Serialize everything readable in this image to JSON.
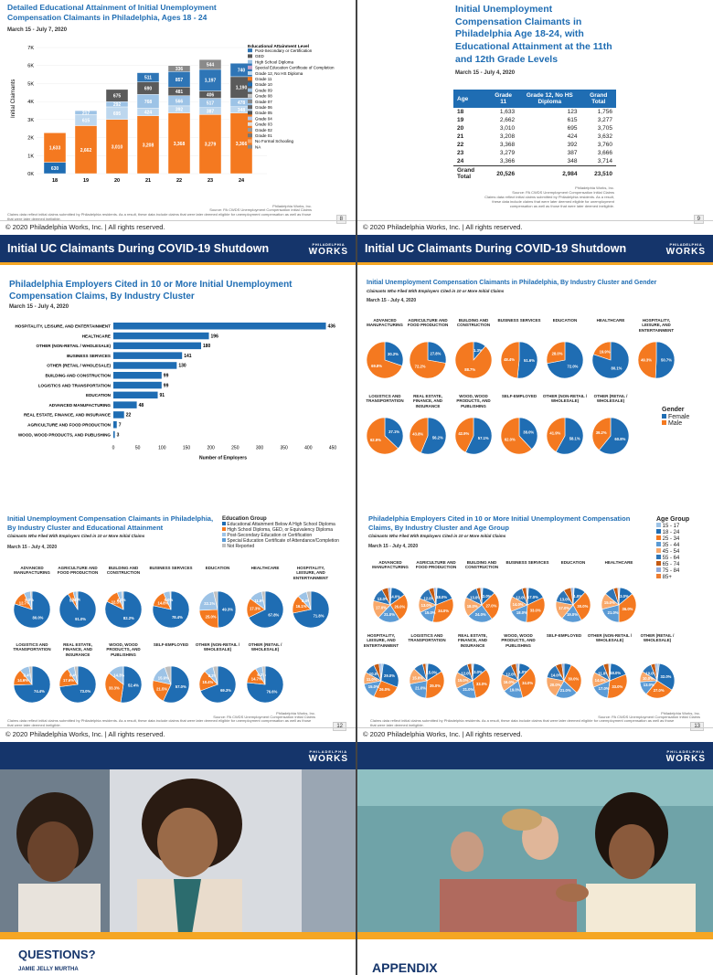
{
  "colors": {
    "blue": "#1f6db3",
    "orange": "#f47920",
    "navy": "#15356b",
    "gold": "#f5a623",
    "light_blue": "#9dc3e6"
  },
  "footer": {
    "copyright": "© 2020 Philadelphia Works, Inc. | All rights reserved."
  },
  "logo": {
    "small": "PHILADELPHIA",
    "big": "WORKS"
  },
  "p8": {
    "title": "Detailed Educational Attainment of Initial Unemployment Compensation Claimants in Philadelphia, Ages 18 - 24",
    "date": "March 15 - July 7, 2020",
    "page": "8",
    "source": "Source: PA CWDS Unemployment Compensation Initial Claims",
    "notes": "Claims data reflect initial claims submitted by Philadelphia residents. As a result, these data include claims that were later deemed eligible for unemployment compensation as well as those that were later deemed ineligible.",
    "credit": "Philadelphia Works, Inc."
  },
  "p9": {
    "title": "Initial Unemployment Compensation Claimants in Philadelphia Age 18-24, with Educational Attainment at the 11th and 12th Grade Levels",
    "date": "March 15 - July 4, 2020",
    "page": "9",
    "headers": [
      "Age",
      "Grade 11",
      "Grade 12, No HS Diploma",
      "Grand Total"
    ],
    "rows": [
      [
        "18",
        "1,633",
        "123",
        "1,756"
      ],
      [
        "19",
        "2,662",
        "615",
        "3,277"
      ],
      [
        "20",
        "3,010",
        "695",
        "3,705"
      ],
      [
        "21",
        "3,208",
        "424",
        "3,632"
      ],
      [
        "22",
        "3,368",
        "392",
        "3,760"
      ],
      [
        "23",
        "3,279",
        "387",
        "3,666"
      ],
      [
        "24",
        "3,366",
        "348",
        "3,714"
      ]
    ],
    "total": [
      "Grand Total",
      "20,526",
      "2,984",
      "23,510"
    ],
    "credit": "Philadelphia Works, Inc.",
    "source": "Source: PA CWDS Unemployment Compensation Initial Claims",
    "notes": "Claims data reflect initial claims submitted by Philadelphia residents. As a result, these data include claims that were later deemed eligible for unemployment compensation as well as those that were later deemed ineligible."
  },
  "p10": {
    "banner": "Initial UC Claimants During COVID-19 Shutdown",
    "title": "Philadelphia Employers Cited in 10 or More Initial Unemployment Compensation Claims, By Industry Cluster",
    "date": "March 15 - July 4, 2020"
  },
  "p11": {
    "banner": "Initial UC Claimants During COVID-19 Shutdown",
    "title": "Initial Unemployment Compensation Claimants in Philadelphia, By Industry Cluster and Gender",
    "subtitle": "Claimants Who Filed With Employers Cited in 10 or More Initial Claims",
    "date": "March 15 - July 4, 2020",
    "legend_title": "Gender",
    "legend": [
      "Female",
      "Male"
    ],
    "pies": [
      {
        "label": "ADVANCED MANUFACTURING",
        "female": 30.2,
        "male": 69.8
      },
      {
        "label": "AGRICULTURE AND FOOD PRODUCTION",
        "female": 27.8,
        "male": 72.2
      },
      {
        "label": "BUILDING AND CONSTRUCTION",
        "female": 11.3,
        "male": 88.7
      },
      {
        "label": "BUSINESS SERVICES",
        "female": 51.6,
        "male": 48.4
      },
      {
        "label": "EDUCATION",
        "female": 72.0,
        "male": 28.0
      },
      {
        "label": "HEALTHCARE",
        "female": 80.1,
        "male": 19.9
      },
      {
        "label": "HOSPITALITY, LEISURE, AND ENTERTAINMENT",
        "female": 50.7,
        "male": 49.3
      },
      {
        "label": "LOGISTICS AND TRANSPORTATION",
        "female": 37.1,
        "male": 62.9
      },
      {
        "label": "REAL ESTATE, FINANCE, AND INSURANCE",
        "female": 56.2,
        "male": 43.8
      },
      {
        "label": "WOOD, WOOD PRODUCTS, AND PUBLISHING",
        "female": 57.1,
        "male": 42.9
      },
      {
        "label": "SELF-EMPLOYED",
        "female": 38.0,
        "male": 62.0
      },
      {
        "label": "OTHER (NON-RETAIL / WHOLESALE)",
        "female": 58.1,
        "male": 41.9
      },
      {
        "label": "OTHER (RETAIL / WHOLESALE)",
        "female": 60.8,
        "male": 39.2
      }
    ]
  },
  "p12": {
    "title": "Initial Unemployment Compensation Claimants in Philadelphia, By Industry Cluster and Educational Attainment",
    "subtitle": "Claimants Who Filed With Employers Cited in 10 or More Initial Claims",
    "date": "March 15 - July 4, 2020",
    "page": "12",
    "legend_title": "Education Group",
    "legend": [
      "Educational Attainment Below A High School Diploma",
      "High School Diploma, GED, or Equivalency Diploma",
      "Post-Secondary Education or Certification",
      "Special Education Certificate of Attendance/Completion",
      "Not Reported"
    ],
    "pies": [
      {
        "label": "ADVANCED MANUFACTURING",
        "main": 80.0,
        "second": 12.7,
        "third": 6.0
      },
      {
        "label": "AGRICULTURE AND FOOD PRODUCTION",
        "main": 91.0,
        "second": 5.0,
        "third": 3.0
      },
      {
        "label": "BUILDING AND CONSTRUCTION",
        "main": 82.2,
        "second": 12.3,
        "third": 4.2
      },
      {
        "label": "BUSINESS SERVICES",
        "main": 78.4,
        "second": 14.8,
        "third": 6.0
      },
      {
        "label": "EDUCATION",
        "main": 49.3,
        "second": 25.0,
        "third": 22.1
      },
      {
        "label": "HEALTHCARE",
        "main": 67.8,
        "second": 17.3,
        "third": 11.9
      },
      {
        "label": "HOSPITALITY, LEISURE, AND ENTERTAINMENT",
        "main": 71.8,
        "second": 16.1,
        "third": 8.4
      },
      {
        "label": "LOGISTICS AND TRANSPORTATION",
        "main": 74.4,
        "second": 14.6,
        "third": 8.4
      },
      {
        "label": "REAL ESTATE, FINANCE, AND INSURANCE",
        "main": 73.0,
        "second": 17.6,
        "third": 6.4
      },
      {
        "label": "WOOD, WOOD PRODUCTS, AND PUBLISHING",
        "main": 52.4,
        "second": 33.3,
        "third": 14.3
      },
      {
        "label": "SELF-EMPLOYED",
        "main": 57.0,
        "second": 21.5,
        "third": 15.9
      },
      {
        "label": "OTHER (NON-RETAIL / WHOLESALE)",
        "main": 69.3,
        "second": 18.4,
        "third": 8.2
      },
      {
        "label": "OTHER (RETAIL / WHOLESALE)",
        "main": 76.6,
        "second": 14.7,
        "third": 6.2
      }
    ]
  },
  "p13": {
    "title": "Philadelphia Employers Cited in 10 or More Initial Unemployment Compensation Claims, By Industry Cluster and Age Group",
    "subtitle": "Claimants Who Filed With Employers Cited in 10 or More Initial Claims",
    "date": "March 15 - July 4, 2020",
    "page": "13",
    "legend_title": "Age Group",
    "legend": [
      "15 - 17",
      "18 - 24",
      "25 - 34",
      "35 - 44",
      "45 - 54",
      "55 - 64",
      "65 - 74",
      "75 - 84",
      "85+"
    ],
    "age_colors": [
      "#9dc3e6",
      "#1f6db3",
      "#f47920",
      "#5b9bd5",
      "#f8a86a",
      "#2e75b6",
      "#c55a11",
      "#8faadc",
      "#ed7d31"
    ],
    "pies": [
      {
        "label": "ADVANCED MANUFACTURING",
        "slices": [
          1,
          14,
          26,
          21,
          17,
          13,
          6,
          2,
          0
        ]
      },
      {
        "label": "AGRICULTURE AND FOOD PRODUCTION",
        "slices": [
          1,
          18,
          34,
          15,
          13,
          12,
          5,
          2,
          0
        ]
      },
      {
        "label": "BUILDING AND CONSTRUCTION",
        "slices": [
          1,
          12,
          27,
          24,
          18,
          13,
          4,
          1,
          0
        ]
      },
      {
        "label": "BUSINESS SERVICES",
        "slices": [
          1,
          17,
          33,
          18,
          14,
          12,
          4,
          1,
          0
        ]
      },
      {
        "label": "EDUCATION",
        "slices": [
          1,
          11,
          30,
          19,
          17,
          13,
          7,
          2,
          0
        ]
      },
      {
        "label": "HEALTHCARE",
        "slices": [
          1,
          13,
          36,
          21,
          15,
          9,
          4,
          1,
          0
        ]
      },
      {
        "label": "HOSPITALITY, LEISURE, AND ENTERTAINMENT",
        "slices": [
          2,
          29,
          26,
          15,
          11,
          10,
          5,
          2,
          0
        ]
      },
      {
        "label": "LOGISTICS AND TRANSPORTATION",
        "slices": [
          1,
          15,
          35,
          21,
          15,
          9,
          3,
          1,
          0
        ]
      },
      {
        "label": "REAL ESTATE, FINANCE, AND INSURANCE",
        "slices": [
          1,
          13,
          33,
          21,
          15,
          12,
          4,
          1,
          0
        ]
      },
      {
        "label": "WOOD, WOOD PRODUCTS, AND PUBLISHING",
        "slices": [
          1,
          11,
          34,
          19,
          16,
          12,
          5,
          2,
          0
        ]
      },
      {
        "label": "SELF-EMPLOYED",
        "slices": [
          0,
          7,
          30,
          21,
          20,
          14,
          6,
          2,
          0
        ]
      },
      {
        "label": "OTHER (NON-RETAIL / WHOLESALE)",
        "slices": [
          1,
          18,
          33,
          17,
          14,
          11,
          5,
          1,
          0
        ]
      },
      {
        "label": "OTHER (RETAIL / WHOLESALE)",
        "slices": [
          2,
          32,
          27,
          13,
          10,
          10,
          4,
          2,
          0
        ]
      }
    ]
  },
  "p14": {
    "title": "QUESTIONS?",
    "name": "JAMIE JELLY MURTHA"
  },
  "p15": {
    "title": "APPENDIX"
  },
  "chart_data": [
    {
      "type": "bar",
      "stacked": true,
      "title": "Detailed Educational Attainment of Initial Unemployment Compensation Claimants in Philadelphia, Ages 18 - 24",
      "ylabel": "Initial Claimants",
      "ylim": [
        0,
        7000
      ],
      "yticks": [
        "0K",
        "1K",
        "2K",
        "3K",
        "4K",
        "5K",
        "6K",
        "7K"
      ],
      "categories": [
        "18",
        "19",
        "20",
        "21",
        "22",
        "23",
        "24"
      ],
      "legend_title": "Educational Attainment Level",
      "legend": [
        "Post-Secondary or Certification",
        "GED",
        "High School Diploma",
        "Special Education Certificate of Completion",
        "Grade 12, No HS Diploma",
        "Grade 11",
        "Grade 10",
        "Grade 09",
        "Grade 08",
        "Grade 07",
        "Grade 06",
        "Grade 05",
        "Grade 04",
        "Grade 03",
        "Grade 02",
        "Grade 01",
        "No Formal Schooling",
        "NA"
      ],
      "series": [
        {
          "name": "Grade 10",
          "values": [
            630,
            0,
            0,
            0,
            0,
            0,
            0
          ],
          "color": "#1f6db3"
        },
        {
          "name": "Grade 11",
          "values": [
            1633,
            2662,
            3010,
            3208,
            3368,
            3279,
            3366
          ],
          "color": "#f47920"
        },
        {
          "name": "Grade 12, No HS Diploma",
          "values": [
            0,
            615,
            695,
            424,
            392,
            387,
            348
          ],
          "color": "#bdd7ee"
        },
        {
          "name": "High School Diploma",
          "values": [
            0,
            217,
            292,
            768,
            566,
            517,
            478
          ],
          "color": "#9dc3e6"
        },
        {
          "name": "GED",
          "values": [
            0,
            0,
            675,
            690,
            481,
            406,
            1190
          ],
          "color": "#5a5a5a"
        },
        {
          "name": "Post-Secondary or Certification",
          "values": [
            0,
            0,
            0,
            511,
            857,
            1197,
            740
          ],
          "color": "#2e75b6"
        },
        {
          "name": "NA",
          "values": [
            0,
            0,
            0,
            0,
            336,
            544,
            0
          ],
          "color": "#8a8a8a"
        }
      ],
      "labels_top": [
        "",
        "217",
        "675",
        "511",
        "336",
        "544",
        "740"
      ]
    },
    {
      "type": "bar",
      "orientation": "horizontal",
      "title": "Philadelphia Employers Cited in 10 or More Initial Unemployment Compensation Claims, By Industry Cluster",
      "xlabel": "Number of Employers",
      "xlim": [
        0,
        450
      ],
      "xticks": [
        0,
        50,
        100,
        150,
        200,
        250,
        300,
        350,
        400,
        450
      ],
      "categories": [
        "HOSPITALITY, LEISURE, AND ENTERTAINMENT",
        "HEALTHCARE",
        "OTHER (NON-RETAIL / WHOLESALE)",
        "BUSINESS SERVICES",
        "OTHER (RETAIL / WHOLESALE)",
        "BUILDING AND CONSTRUCTION",
        "LOGISTICS AND TRANSPORTATION",
        "EDUCATION",
        "ADVANCED MANUFACTURING",
        "REAL ESTATE, FINANCE, AND INSURANCE",
        "AGRICULTURE AND FOOD PRODUCTION",
        "WOOD, WOOD PRODUCTS, AND PUBLISHING"
      ],
      "values": [
        436,
        196,
        180,
        141,
        130,
        99,
        99,
        91,
        48,
        22,
        7,
        3
      ]
    }
  ]
}
